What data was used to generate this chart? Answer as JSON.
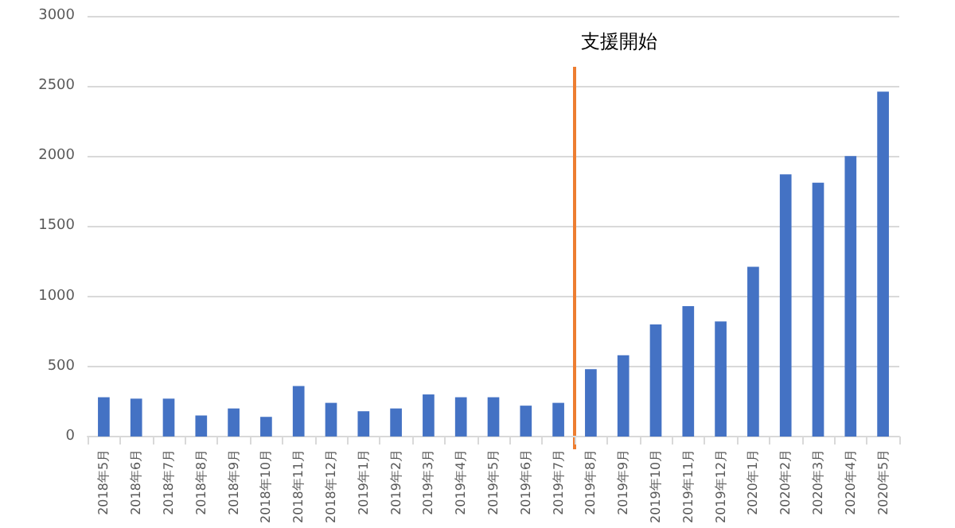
{
  "chart_data": {
    "type": "bar",
    "categories": [
      "2018年5月",
      "2018年6月",
      "2018年7月",
      "2018年8月",
      "2018年9月",
      "2018年10月",
      "2018年11月",
      "2018年12月",
      "2019年1月",
      "2019年2月",
      "2019年3月",
      "2019年4月",
      "2019年5月",
      "2019年6月",
      "2019年7月",
      "2019年8月",
      "2019年9月",
      "2019年10月",
      "2019年11月",
      "2019年12月",
      "2020年1月",
      "2020年2月",
      "2020年3月",
      "2020年4月",
      "2020年5月"
    ],
    "values": [
      280,
      270,
      270,
      150,
      200,
      140,
      360,
      240,
      180,
      200,
      300,
      280,
      280,
      220,
      240,
      480,
      580,
      800,
      930,
      820,
      1210,
      1870,
      1810,
      2000,
      2460
    ],
    "color": "#4472c4",
    "ylim": [
      0,
      3000
    ],
    "yticks": [
      0,
      500,
      1000,
      1500,
      2000,
      2500,
      3000
    ],
    "grid": "y",
    "ref_lines": [
      {
        "axis": "x",
        "value": "2019年8月",
        "label": "支援開始",
        "color": "#ed7d31"
      }
    ]
  }
}
